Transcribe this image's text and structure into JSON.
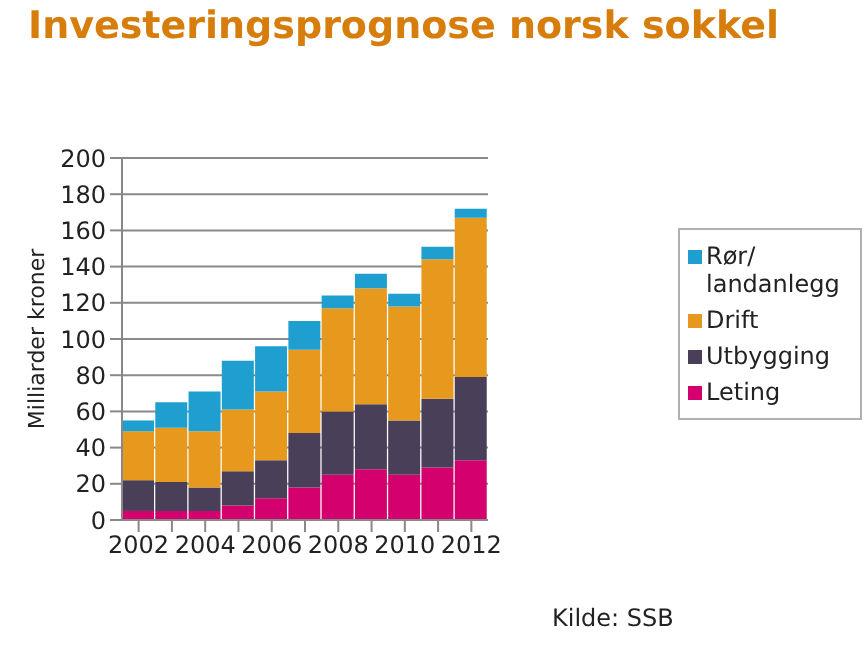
{
  "chart_data": {
    "type": "bar",
    "title": "Investeringsprognose norsk sokkel",
    "ylabel": "Milliarder kroner",
    "annotations": [
      "Kilde: SSB"
    ],
    "categories": [
      "2002",
      null,
      "2004",
      null,
      "2006",
      null,
      "2008",
      null,
      "2010",
      null,
      "2012"
    ],
    "stacked": true,
    "ylim": [
      0,
      200
    ],
    "yticks": [
      0,
      20,
      40,
      60,
      80,
      100,
      120,
      140,
      160,
      180,
      200
    ],
    "grid": "y",
    "legend": "right",
    "series": [
      {
        "name": "Leting",
        "color": "#d4006e",
        "values": [
          5,
          5,
          5,
          8,
          12,
          18,
          25,
          28,
          25,
          29,
          33
        ]
      },
      {
        "name": "Utbygging",
        "color": "#4a3f58",
        "values": [
          17,
          16,
          13,
          19,
          21,
          30,
          35,
          36,
          30,
          38,
          46
        ]
      },
      {
        "name": "Drift",
        "color": "#e6991c",
        "values": [
          27,
          30,
          31,
          34,
          38,
          46,
          57,
          64,
          63,
          77,
          88
        ]
      },
      {
        "name": "Rør/ landanlegg",
        "color": "#1e9fcf",
        "values": [
          6,
          14,
          22,
          27,
          25,
          16,
          7,
          8,
          7,
          7,
          5
        ]
      }
    ]
  }
}
